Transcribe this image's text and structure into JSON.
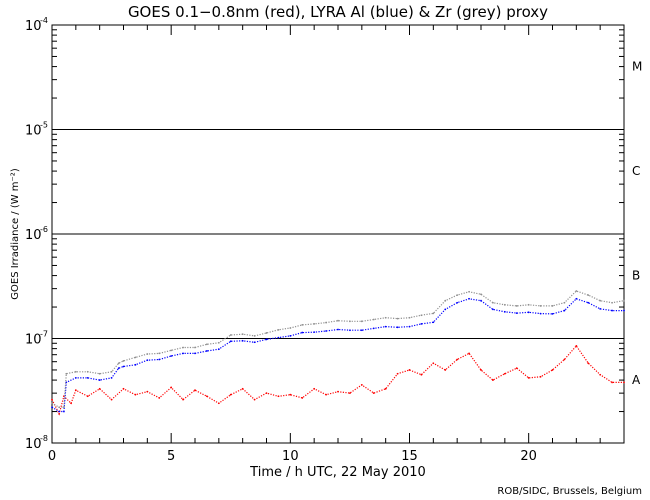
{
  "chart_data": {
    "type": "scatter",
    "title": "GOES 0.1−0.8nm (red), LYRA Al (blue) & Zr (grey) proxy",
    "xlabel": "Time / h UTC, 22 May 2010",
    "ylabel": "GOES Irradiance / (W m⁻²)",
    "xlim": [
      0,
      24
    ],
    "ylim": [
      1e-08,
      0.0001
    ],
    "yscale": "log",
    "x_ticks": [
      "0",
      "5",
      "10",
      "15",
      "20"
    ],
    "x_tick_values": [
      0,
      5,
      10,
      15,
      20
    ],
    "y_tick_exponents": [
      "-8",
      "-7",
      "-6",
      "-5",
      "-4"
    ],
    "y_tick_values": [
      1e-08,
      1e-07,
      1e-06,
      1e-05,
      0.0001
    ],
    "flare_class_lines": [
      1e-07,
      1e-06,
      1e-05
    ],
    "flare_classes": [
      {
        "label": "A",
        "value": 4e-08
      },
      {
        "label": "B",
        "value": 4e-07
      },
      {
        "label": "C",
        "value": 4e-06
      },
      {
        "label": "M",
        "value": 4e-05
      }
    ],
    "credit": "ROB/SIDC, Brussels, Belgium",
    "series": [
      {
        "color": "#ff0000",
        "points": [
          [
            0.0,
            2.6e-08
          ],
          [
            0.3,
            1.9e-08
          ],
          [
            0.5,
            2.8e-08
          ],
          [
            0.8,
            2.4e-08
          ],
          [
            1.0,
            3.2e-08
          ],
          [
            1.5,
            2.8e-08
          ],
          [
            2.0,
            3.3e-08
          ],
          [
            2.5,
            2.6e-08
          ],
          [
            3.0,
            3.3e-08
          ],
          [
            3.5,
            2.9e-08
          ],
          [
            4.0,
            3.1e-08
          ],
          [
            4.5,
            2.7e-08
          ],
          [
            5.0,
            3.4e-08
          ],
          [
            5.5,
            2.6e-08
          ],
          [
            6.0,
            3.2e-08
          ],
          [
            6.5,
            2.8e-08
          ],
          [
            7.0,
            2.4e-08
          ],
          [
            7.5,
            2.9e-08
          ],
          [
            8.0,
            3.3e-08
          ],
          [
            8.5,
            2.6e-08
          ],
          [
            9.0,
            3e-08
          ],
          [
            9.5,
            2.8e-08
          ],
          [
            10.0,
            2.9e-08
          ],
          [
            10.5,
            2.7e-08
          ],
          [
            11.0,
            3.3e-08
          ],
          [
            11.5,
            2.9e-08
          ],
          [
            12.0,
            3.1e-08
          ],
          [
            12.5,
            3e-08
          ],
          [
            13.0,
            3.6e-08
          ],
          [
            13.5,
            3e-08
          ],
          [
            14.0,
            3.3e-08
          ],
          [
            14.5,
            4.6e-08
          ],
          [
            15.0,
            5e-08
          ],
          [
            15.5,
            4.5e-08
          ],
          [
            16.0,
            5.8e-08
          ],
          [
            16.5,
            5e-08
          ],
          [
            17.0,
            6.3e-08
          ],
          [
            17.5,
            7.2e-08
          ],
          [
            18.0,
            5e-08
          ],
          [
            18.5,
            4e-08
          ],
          [
            19.0,
            4.6e-08
          ],
          [
            19.5,
            5.2e-08
          ],
          [
            20.0,
            4.2e-08
          ],
          [
            20.5,
            4.3e-08
          ],
          [
            21.0,
            5e-08
          ],
          [
            21.5,
            6.3e-08
          ],
          [
            22.0,
            8.5e-08
          ],
          [
            22.5,
            5.8e-08
          ],
          [
            23.0,
            4.5e-08
          ],
          [
            23.5,
            3.8e-08
          ],
          [
            24.0,
            3.8e-08
          ]
        ]
      },
      {
        "color": "#0000ff",
        "points": [
          [
            0.0,
            2.2e-08
          ],
          [
            0.3,
            2e-08
          ],
          [
            0.5,
            2e-08
          ],
          [
            0.6,
            3.8e-08
          ],
          [
            1.0,
            4.2e-08
          ],
          [
            1.5,
            4.2e-08
          ],
          [
            2.0,
            4e-08
          ],
          [
            2.5,
            4.2e-08
          ],
          [
            2.8,
            5.2e-08
          ],
          [
            3.0,
            5.4e-08
          ],
          [
            3.5,
            5.6e-08
          ],
          [
            4.0,
            6.2e-08
          ],
          [
            4.5,
            6.3e-08
          ],
          [
            5.0,
            6.8e-08
          ],
          [
            5.5,
            7.2e-08
          ],
          [
            6.0,
            7.2e-08
          ],
          [
            6.5,
            7.6e-08
          ],
          [
            7.0,
            7.9e-08
          ],
          [
            7.5,
            9.4e-08
          ],
          [
            8.0,
            9.5e-08
          ],
          [
            8.5,
            9.2e-08
          ],
          [
            9.0,
            9.8e-08
          ],
          [
            9.5,
            1.02e-07
          ],
          [
            10.0,
            1.06e-07
          ],
          [
            10.5,
            1.14e-07
          ],
          [
            11.0,
            1.15e-07
          ],
          [
            11.5,
            1.18e-07
          ],
          [
            12.0,
            1.22e-07
          ],
          [
            12.5,
            1.2e-07
          ],
          [
            13.0,
            1.2e-07
          ],
          [
            13.5,
            1.25e-07
          ],
          [
            14.0,
            1.3e-07
          ],
          [
            14.5,
            1.28e-07
          ],
          [
            15.0,
            1.3e-07
          ],
          [
            15.5,
            1.38e-07
          ],
          [
            16.0,
            1.43e-07
          ],
          [
            16.5,
            1.9e-07
          ],
          [
            17.0,
            2.2e-07
          ],
          [
            17.5,
            2.4e-07
          ],
          [
            18.0,
            2.3e-07
          ],
          [
            18.5,
            1.9e-07
          ],
          [
            19.0,
            1.8e-07
          ],
          [
            19.5,
            1.75e-07
          ],
          [
            20.0,
            1.78e-07
          ],
          [
            20.5,
            1.73e-07
          ],
          [
            21.0,
            1.72e-07
          ],
          [
            21.5,
            1.85e-07
          ],
          [
            22.0,
            2.4e-07
          ],
          [
            22.5,
            2.2e-07
          ],
          [
            23.0,
            1.92e-07
          ],
          [
            23.5,
            1.85e-07
          ],
          [
            24.0,
            1.85e-07
          ]
        ]
      },
      {
        "color": "#909090",
        "points": [
          [
            0.0,
            2.4e-08
          ],
          [
            0.3,
            2.2e-08
          ],
          [
            0.5,
            2.2e-08
          ],
          [
            0.6,
            4.6e-08
          ],
          [
            1.0,
            4.8e-08
          ],
          [
            1.5,
            4.8e-08
          ],
          [
            2.0,
            4.6e-08
          ],
          [
            2.5,
            4.8e-08
          ],
          [
            2.8,
            5.8e-08
          ],
          [
            3.0,
            6.1e-08
          ],
          [
            3.5,
            6.6e-08
          ],
          [
            4.0,
            7.1e-08
          ],
          [
            4.5,
            7.2e-08
          ],
          [
            5.0,
            7.7e-08
          ],
          [
            5.5,
            8.2e-08
          ],
          [
            6.0,
            8.2e-08
          ],
          [
            6.5,
            8.8e-08
          ],
          [
            7.0,
            9.1e-08
          ],
          [
            7.5,
            1.08e-07
          ],
          [
            8.0,
            1.1e-07
          ],
          [
            8.5,
            1.06e-07
          ],
          [
            9.0,
            1.13e-07
          ],
          [
            9.5,
            1.21e-07
          ],
          [
            10.0,
            1.26e-07
          ],
          [
            10.5,
            1.35e-07
          ],
          [
            11.0,
            1.38e-07
          ],
          [
            11.5,
            1.42e-07
          ],
          [
            12.0,
            1.48e-07
          ],
          [
            12.5,
            1.46e-07
          ],
          [
            13.0,
            1.46e-07
          ],
          [
            13.5,
            1.52e-07
          ],
          [
            14.0,
            1.58e-07
          ],
          [
            14.5,
            1.55e-07
          ],
          [
            15.0,
            1.58e-07
          ],
          [
            15.5,
            1.67e-07
          ],
          [
            16.0,
            1.74e-07
          ],
          [
            16.5,
            2.3e-07
          ],
          [
            17.0,
            2.6e-07
          ],
          [
            17.5,
            2.8e-07
          ],
          [
            18.0,
            2.65e-07
          ],
          [
            18.5,
            2.2e-07
          ],
          [
            19.0,
            2.1e-07
          ],
          [
            19.5,
            2.05e-07
          ],
          [
            20.0,
            2.1e-07
          ],
          [
            20.5,
            2.05e-07
          ],
          [
            21.0,
            2.05e-07
          ],
          [
            21.5,
            2.2e-07
          ],
          [
            22.0,
            2.85e-07
          ],
          [
            22.5,
            2.6e-07
          ],
          [
            23.0,
            2.3e-07
          ],
          [
            23.5,
            2.2e-07
          ],
          [
            24.0,
            2.3e-07
          ]
        ]
      }
    ]
  }
}
